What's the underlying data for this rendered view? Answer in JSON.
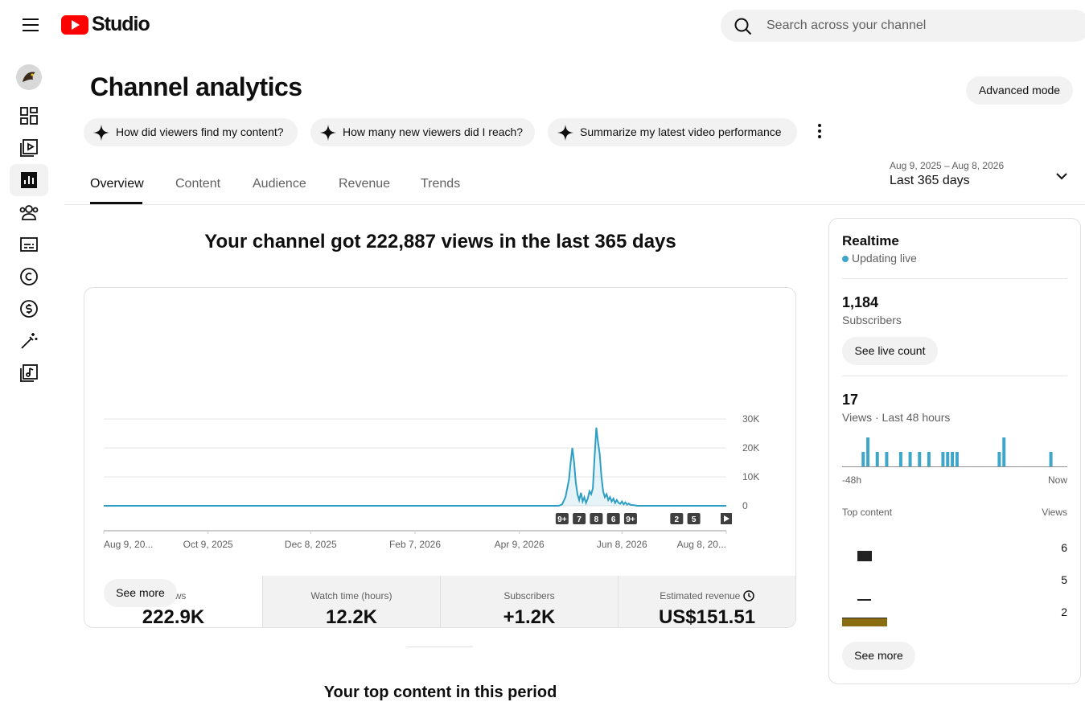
{
  "header": {
    "logo_text": "Studio",
    "search_placeholder": "Search across your channel"
  },
  "page": {
    "title": "Channel analytics",
    "advanced_mode": "Advanced mode",
    "suggestions": [
      "How did viewers find my content?",
      "How many new viewers did I reach?",
      "Summarize my latest video performance"
    ],
    "tabs": [
      "Overview",
      "Content",
      "Audience",
      "Revenue",
      "Trends"
    ],
    "date_range": {
      "dates": "Aug 9, 2025 – Aug 8, 2026",
      "label": "Last 365 days"
    },
    "headline": "Your channel got 222,887 views in the last 365 days",
    "metrics": [
      {
        "label": "Views",
        "value": "222.9K"
      },
      {
        "label": "Watch time (hours)",
        "value": "12.2K"
      },
      {
        "label": "Subscribers",
        "value": "+1.2K"
      },
      {
        "label": "Estimated revenue",
        "value": "US$151.51"
      }
    ],
    "see_more": "See more",
    "next_section": "Your top content in this period"
  },
  "chart_data": [
    {
      "type": "line",
      "x": [
        0,
        266,
        268,
        270,
        272,
        273,
        274,
        275,
        276,
        277,
        278,
        279,
        280,
        281,
        282,
        283,
        284,
        285,
        286,
        287,
        288,
        289,
        290,
        291,
        292,
        293,
        294,
        295,
        296,
        297,
        298,
        299,
        300,
        301,
        302,
        303,
        304,
        305,
        306,
        307,
        308,
        310,
        312,
        364
      ],
      "values": [
        0,
        0,
        500,
        3000,
        9000,
        15000,
        20000,
        15000,
        8000,
        4000,
        2000,
        4500,
        1500,
        3000,
        1000,
        2500,
        5000,
        4000,
        6000,
        17000,
        27000,
        22000,
        18000,
        10000,
        5000,
        3000,
        4000,
        2000,
        3000,
        1500,
        2500,
        1000,
        2000,
        1000,
        700,
        1500,
        500,
        1200,
        400,
        800,
        300,
        200,
        0,
        0
      ],
      "color": "#2e9fc4",
      "xlim": [
        0,
        364
      ],
      "xticks": [
        {
          "value": 0,
          "label": "Aug 9, 20..."
        },
        {
          "value": 61,
          "label": "Oct 9, 2025"
        },
        {
          "value": 121,
          "label": "Dec 8, 2025"
        },
        {
          "value": 182,
          "label": "Feb 7, 2026"
        },
        {
          "value": 243,
          "label": "Apr 9, 2026"
        },
        {
          "value": 303,
          "label": "Jun 8, 2026"
        },
        {
          "value": 364,
          "label": "Aug 8, 20..."
        }
      ],
      "ylim": [
        0,
        30000
      ],
      "yticks": [
        0,
        {
          "value": 10000,
          "label": "10K"
        },
        {
          "value": 20000,
          "label": "20K"
        },
        {
          "value": 30000,
          "label": "30K"
        }
      ],
      "grid": true,
      "video_markers": {
        "x": [
          268,
          278,
          288,
          298,
          308,
          335,
          345
        ],
        "labels": [
          "9+",
          "7",
          "8",
          "6",
          "9+",
          "2",
          "5"
        ]
      }
    },
    {
      "type": "bar",
      "categories": [
        "-48h",
        null,
        null,
        null,
        null,
        null,
        null,
        null,
        null,
        null,
        null,
        null,
        null,
        null,
        null,
        null,
        null,
        null,
        null,
        null,
        null,
        null,
        null,
        null,
        null,
        null,
        null,
        null,
        null,
        null,
        null,
        null,
        null,
        null,
        null,
        null,
        null,
        null,
        null,
        null,
        null,
        null,
        null,
        null,
        null,
        null,
        null,
        "Now"
      ],
      "values": [
        0,
        0,
        0,
        0,
        1,
        2,
        0,
        1,
        0,
        1,
        0,
        0,
        1,
        0,
        1,
        0,
        1,
        0,
        1,
        0,
        0,
        1,
        1,
        1,
        1,
        0,
        0,
        0,
        0,
        0,
        0,
        0,
        0,
        1,
        2,
        0,
        0,
        0,
        0,
        0,
        0,
        0,
        0,
        0,
        1,
        0,
        0,
        0
      ],
      "color": "#3ea6c9"
    }
  ],
  "realtime": {
    "title": "Realtime",
    "status": "Updating live",
    "subscribers": {
      "value": "1,184",
      "label": "Subscribers",
      "button": "See live count"
    },
    "views": {
      "value": "17",
      "label": "Views · Last 48 hours"
    },
    "top_content": {
      "header": "Top content",
      "views_header": "Views",
      "values": [
        6,
        5,
        2
      ]
    },
    "see_more": "See more"
  }
}
